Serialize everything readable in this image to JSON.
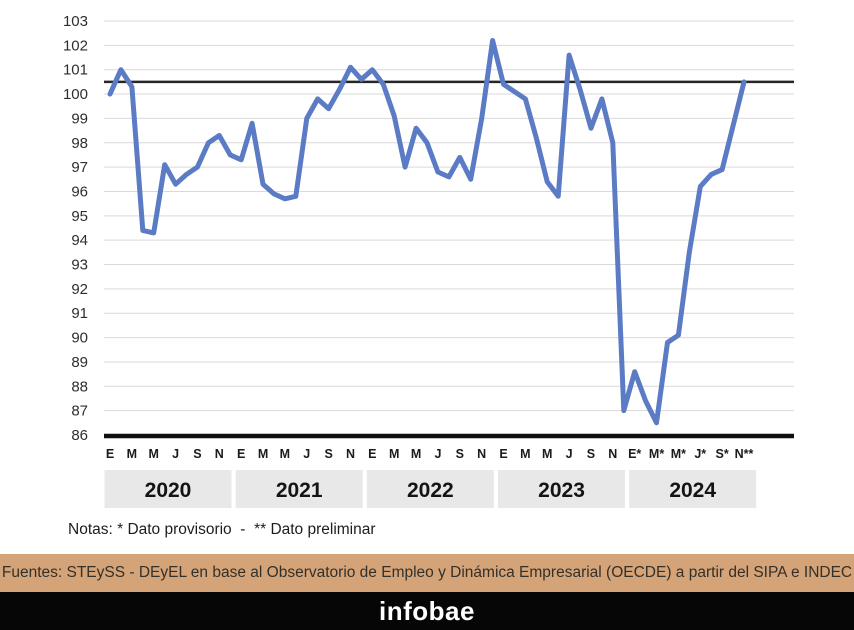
{
  "chart_data": {
    "type": "line",
    "title": "",
    "ylim": [
      86,
      103
    ],
    "y_tick_step": 1,
    "reference_line": 100.5,
    "grid": true,
    "legend": "none",
    "years": [
      {
        "label": "2020",
        "tick_labels": [
          "E",
          "M",
          "M",
          "J",
          "S",
          "N"
        ],
        "values": [
          100.0,
          101.0,
          100.3,
          94.4,
          94.3,
          97.1,
          96.3,
          96.7,
          97.0,
          98.0,
          98.3,
          97.5
        ]
      },
      {
        "label": "2021",
        "tick_labels": [
          "E",
          "M",
          "M",
          "J",
          "S",
          "N"
        ],
        "values": [
          97.3,
          98.8,
          96.3,
          95.9,
          95.7,
          95.8,
          99.0,
          99.8,
          99.4,
          100.2,
          101.1,
          100.6
        ]
      },
      {
        "label": "2022",
        "tick_labels": [
          "E",
          "M",
          "M",
          "J",
          "S",
          "N"
        ],
        "values": [
          101.0,
          100.4,
          99.1,
          97.0,
          98.6,
          98.0,
          96.8,
          96.6,
          97.4,
          96.5,
          99.0,
          102.2
        ]
      },
      {
        "label": "2023",
        "tick_labels": [
          "E",
          "M",
          "M",
          "J",
          "S",
          "N"
        ],
        "values": [
          100.4,
          100.1,
          99.8,
          98.2,
          96.4,
          95.8,
          101.6,
          100.2,
          98.6,
          99.8,
          98.0,
          87.0
        ]
      },
      {
        "label": "2024",
        "tick_labels": [
          "E*",
          "M*",
          "M*",
          "J*",
          "S*",
          "N**"
        ],
        "values": [
          88.6,
          87.4,
          86.5,
          89.8,
          90.1,
          93.5,
          96.2,
          96.7,
          96.9,
          98.7,
          100.5
        ]
      }
    ],
    "colors": {
      "line": "#5b7cc4",
      "reference_line": "#262626",
      "grid": "#d9d9d9",
      "axis": "#101010",
      "tick_text": "#1b1b1b",
      "y_label_text": "#2e2e2e",
      "year_box_bg": "#e8e8e8",
      "year_text": "#141414"
    }
  },
  "notes": "Notas: * Dato provisorio  -  ** Dato preliminar",
  "source_bar": {
    "text": "Fuentes: STEySS - DEyEL en base al Observatorio de Empleo y Dinámica Empresarial (OECDE) a partir del SIPA e INDEC",
    "bg": "#d4a378"
  },
  "footer": {
    "logo_text": "infobae",
    "bg": "#060606"
  }
}
